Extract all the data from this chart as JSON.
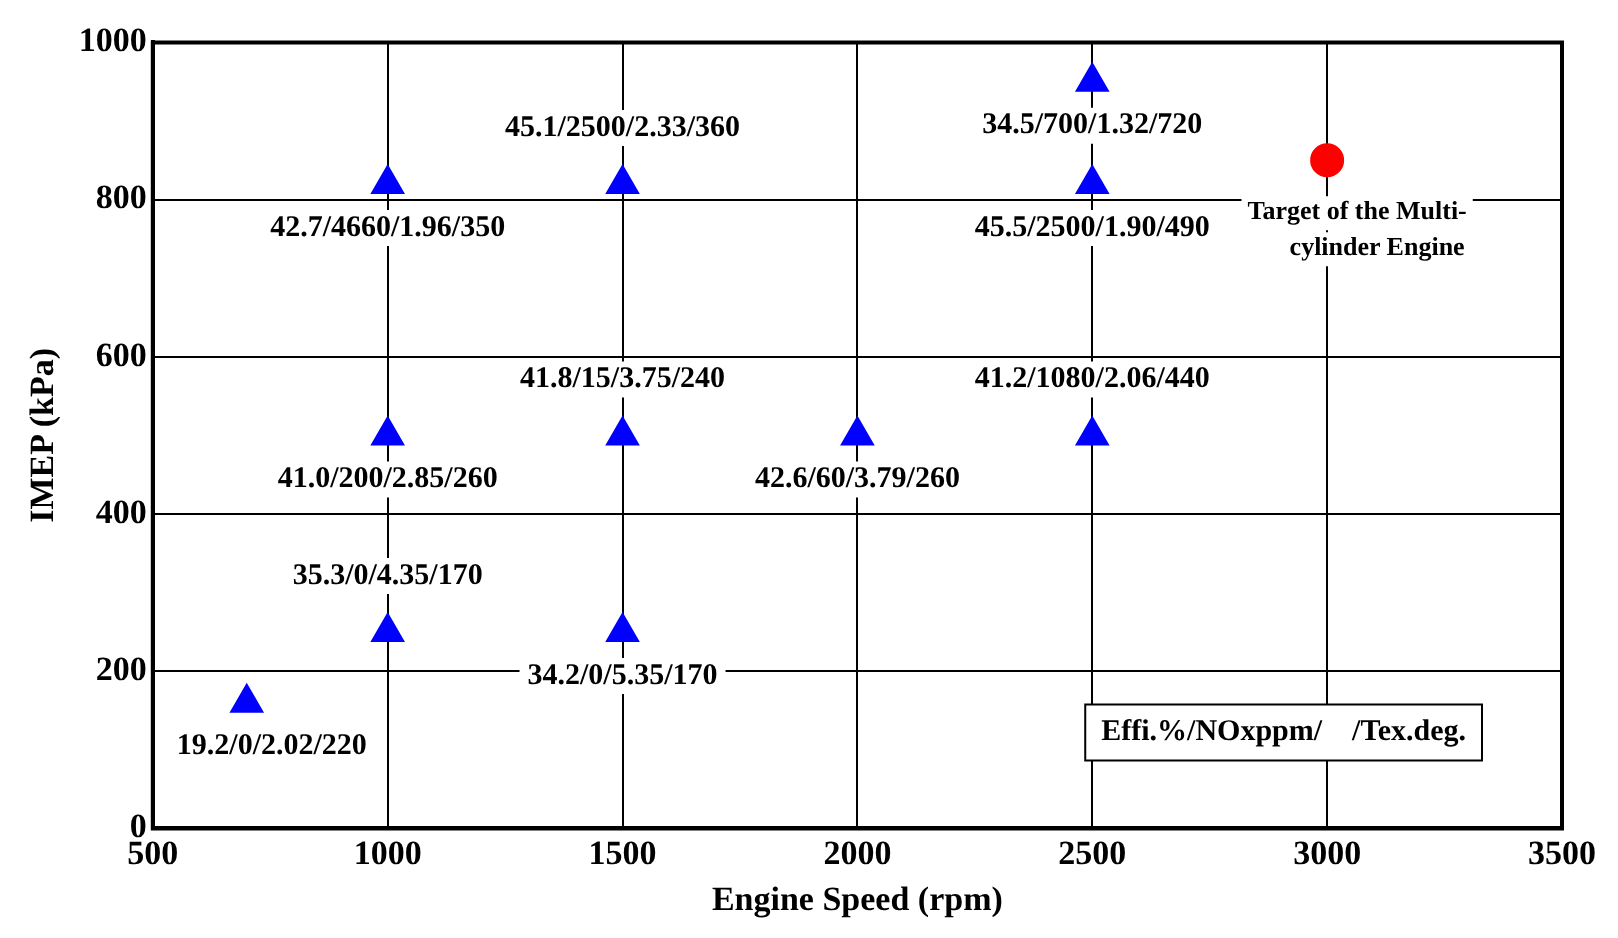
{
  "chart_data": {
    "type": "scatter",
    "xlabel": "Engine Speed (rpm)",
    "ylabel": "IMEP (kPa)",
    "xlim": [
      500,
      3500
    ],
    "xticks": [
      500,
      1000,
      1500,
      2000,
      2500,
      3000,
      3500
    ],
    "ylim": [
      0,
      1000
    ],
    "yticks": [
      0,
      200,
      400,
      600,
      800,
      1000
    ],
    "grid": true,
    "series": [
      {
        "color": "#0000ff",
        "marker": "triangle",
        "x": [
          700,
          1000,
          1000,
          1000,
          1500,
          1500,
          1500,
          2000,
          2500,
          2500,
          2500
        ],
        "values": [
          160,
          250,
          500,
          820,
          250,
          500,
          820,
          500,
          500,
          820,
          950
        ]
      },
      {
        "name": "Target of the Multi-cylinder Engine",
        "color": "#ff0000",
        "marker": "circle",
        "x": [
          3000
        ],
        "values": [
          850
        ]
      }
    ],
    "annotations": [
      {
        "text": "19.2/0/2.02/220",
        "x": 700,
        "y": 160
      },
      {
        "text": "35.3/0/4.35/170",
        "x": 1000,
        "y": 250
      },
      {
        "text": "41.0/200/2.85/260",
        "x": 1000,
        "y": 500
      },
      {
        "text": "42.7/4660/1.96/350",
        "x": 1000,
        "y": 820
      },
      {
        "text": "34.2/0/5.35/170",
        "x": 1500,
        "y": 250
      },
      {
        "text": "41.8/15/3.75/240",
        "x": 1500,
        "y": 500
      },
      {
        "text": "45.1/2500/2.33/360",
        "x": 1500,
        "y": 820
      },
      {
        "text": "42.6/60/3.79/260",
        "x": 2000,
        "y": 500
      },
      {
        "text": "41.2/1080/2.06/440",
        "x": 2500,
        "y": 500
      },
      {
        "text": "45.5/2500/1.90/490",
        "x": 2500,
        "y": 820
      },
      {
        "text": "34.5/700/1.32/720",
        "x": 2500,
        "y": 950
      },
      "Effi.%/NOxppm/    /Tex.deg."
    ]
  }
}
